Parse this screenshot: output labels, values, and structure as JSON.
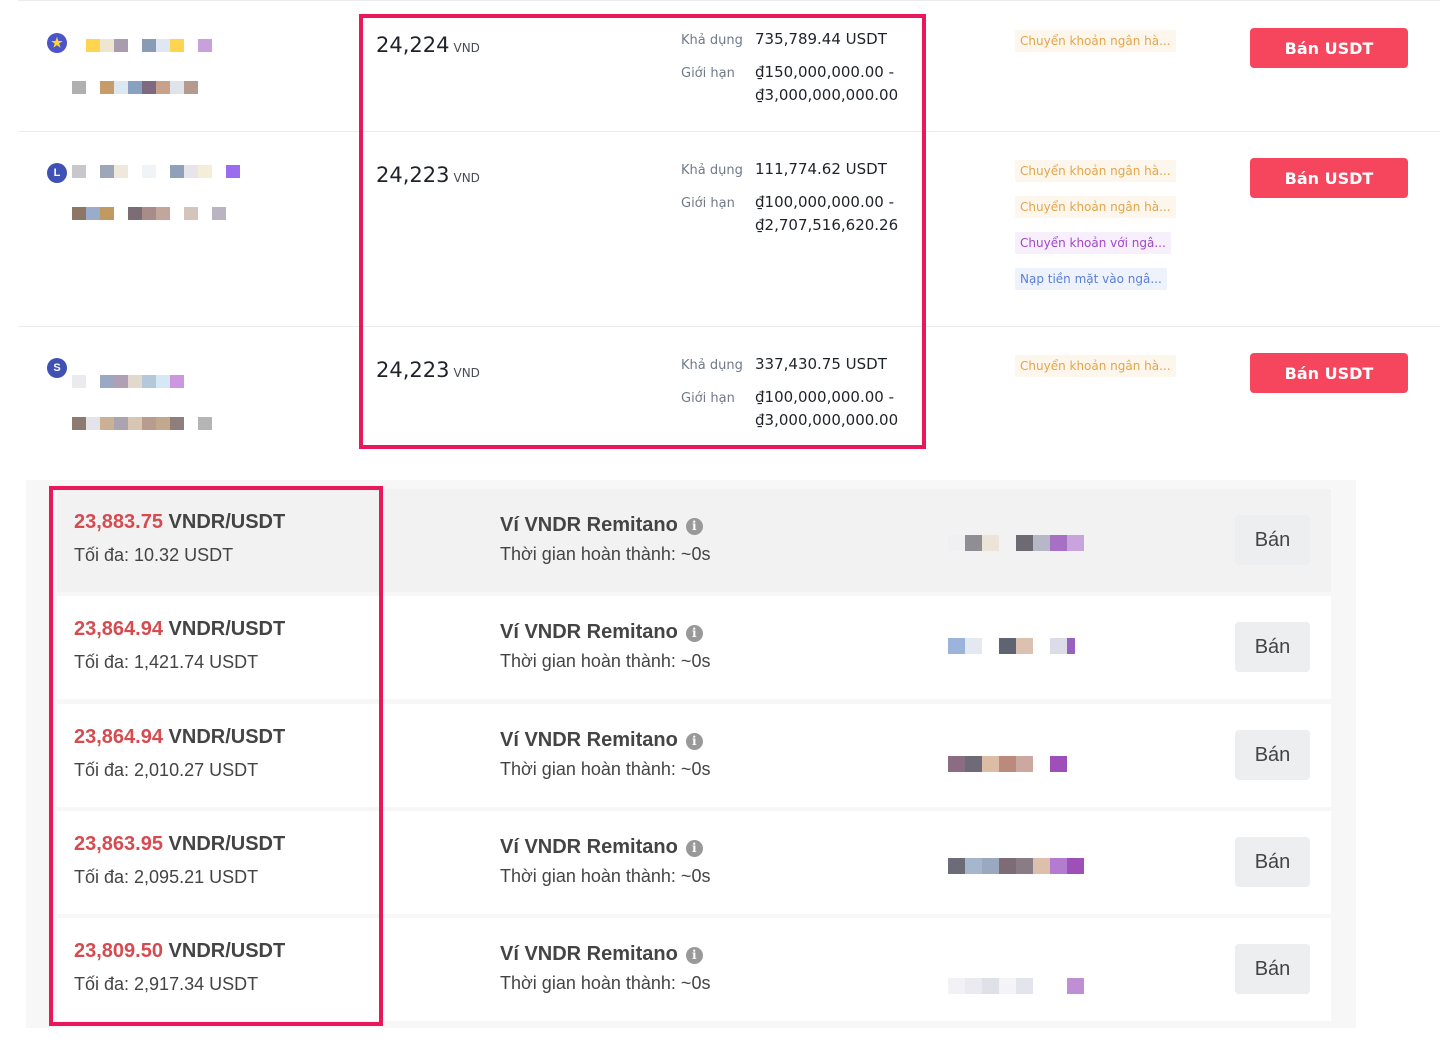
{
  "p2p_offers": [
    {
      "avatar_letter": "★",
      "price": "24,224",
      "unit": "VND",
      "available_label": "Khả dụng",
      "available": "735,789.44 USDT",
      "limit_label": "Giới hạn",
      "limit_min": "₫150,000,000.00 -",
      "limit_max": "₫3,000,000,000.00",
      "payments": [
        "Chuyển khoản ngân hà..."
      ],
      "button": "Bán USDT"
    },
    {
      "avatar_letter": "L",
      "price": "24,223",
      "unit": "VND",
      "available_label": "Khả dụng",
      "available": "111,774.62 USDT",
      "limit_label": "Giới hạn",
      "limit_min": "₫100,000,000.00 -",
      "limit_max": "₫2,707,516,620.26",
      "payments": [
        "Chuyển khoản ngân hà...",
        "Chuyển khoản ngân hà...",
        "Chuyển khoản với ngâ...",
        "Nạp tiền mặt vào ngâ..."
      ],
      "button": "Bán USDT"
    },
    {
      "avatar_letter": "S",
      "price": "24,223",
      "unit": "VND",
      "available_label": "Khả dụng",
      "available": "337,430.75 USDT",
      "limit_label": "Giới hạn",
      "limit_min": "₫100,000,000.00 -",
      "limit_max": "₫3,000,000,000.00",
      "payments": [
        "Chuyển khoản ngân hà..."
      ],
      "button": "Bán USDT"
    }
  ],
  "remitano_offers": [
    {
      "price": "23,883.75",
      "pair": "VNDR/USDT",
      "max": "Tối đa: 10.32 USDT",
      "wallet": "Ví VNDR Remitano",
      "time": "Thời gian hoàn thành: ~0s",
      "button": "Bán"
    },
    {
      "price": "23,864.94",
      "pair": "VNDR/USDT",
      "max": "Tối đa: 1,421.74 USDT",
      "wallet": "Ví VNDR Remitano",
      "time": "Thời gian hoàn thành: ~0s",
      "button": "Bán"
    },
    {
      "price": "23,864.94",
      "pair": "VNDR/USDT",
      "max": "Tối đa: 2,010.27 USDT",
      "wallet": "Ví VNDR Remitano",
      "time": "Thời gian hoàn thành: ~0s",
      "button": "Bán"
    },
    {
      "price": "23,863.95",
      "pair": "VNDR/USDT",
      "max": "Tối đa: 2,095.21 USDT",
      "wallet": "Ví VNDR Remitano",
      "time": "Thời gian hoàn thành: ~0s",
      "button": "Bán"
    },
    {
      "price": "23,809.50",
      "pair": "VNDR/USDT",
      "max": "Tối đa: 2,917.34 USDT",
      "wallet": "Ví VNDR Remitano",
      "time": "Thời gian hoàn thành: ~0s",
      "button": "Bán"
    }
  ],
  "info_icon": "i",
  "colors": {
    "sell_button": "#f6465d",
    "highlight_border": "#e8185a",
    "remitano_price": "#d64b4f"
  }
}
